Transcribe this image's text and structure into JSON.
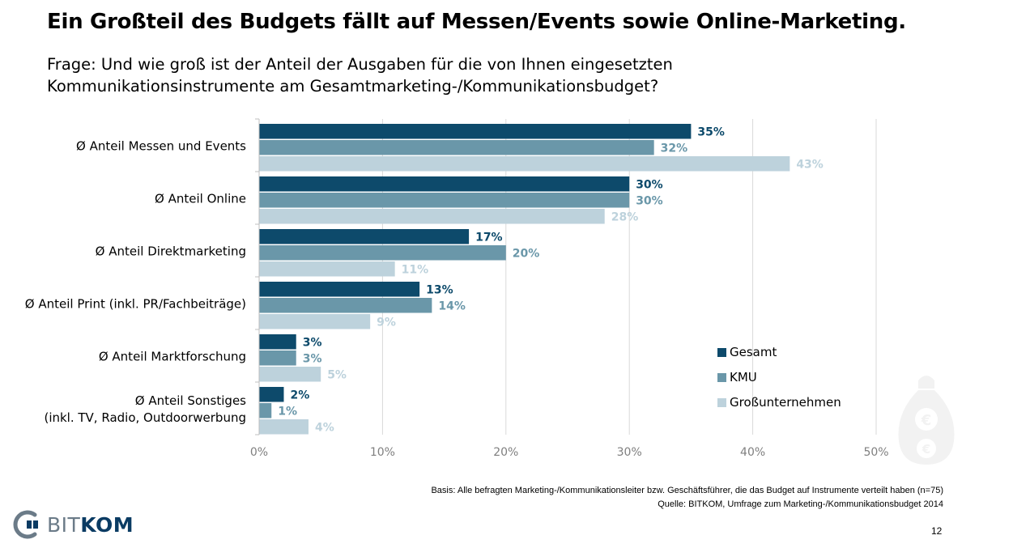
{
  "title": "Ein Großteil des Budgets fällt auf Messen/Events sowie Online-Marketing.",
  "question": {
    "line1": "Frage: Und wie groß ist der Anteil der Ausgaben für die von Ihnen eingesetzten",
    "line2": "Kommunikationsinstrumente am Gesamtmarketing-/Kommunikationsbudget?"
  },
  "footer": {
    "basis": "Basis: Alle befragten Marketing-/Kommunikationsleiter bzw. Geschäftsführer, die das Budget auf Instrumente verteilt haben (n=75)",
    "source": "Quelle: BITKOM, Umfrage zum Marketing-/Kommunikationsbudget 2014"
  },
  "page_number": "12",
  "logo": {
    "prefix": "BIT",
    "suffix": "KOM"
  },
  "colors": {
    "gesamt": "#0d4a6b",
    "kmu": "#6a97a9",
    "gross": "#bdd2dc",
    "grid": "#d9d9d9"
  },
  "chart_data": {
    "type": "bar",
    "orientation": "horizontal",
    "categories": [
      [
        "Ø Anteil Messen und Events"
      ],
      [
        "Ø Anteil Online"
      ],
      [
        "Ø Anteil Direktmarketing"
      ],
      [
        "Ø Anteil Print (inkl. PR/Fachbeiträge)"
      ],
      [
        "Ø Anteil Marktforschung"
      ],
      [
        "Ø Anteil Sonstiges",
        "(inkl. TV, Radio, Outdoorwerbung"
      ]
    ],
    "series": [
      {
        "name": "Gesamt",
        "values": [
          35,
          30,
          17,
          13,
          3,
          2
        ]
      },
      {
        "name": "KMU",
        "values": [
          32,
          30,
          20,
          14,
          3,
          1
        ]
      },
      {
        "name": "Großunternehmen",
        "values": [
          43,
          28,
          11,
          9,
          5,
          4
        ]
      }
    ],
    "xlim": [
      0,
      50
    ],
    "xticks": [
      "0%",
      "10%",
      "20%",
      "30%",
      "40%",
      "50%"
    ],
    "value_suffix": "%",
    "grid": true,
    "legend": "bottom-right"
  }
}
